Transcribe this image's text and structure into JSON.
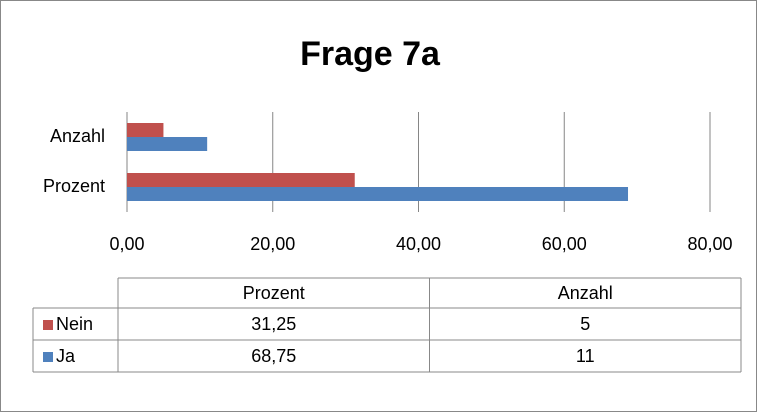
{
  "chart_data": {
    "type": "bar",
    "orientation": "horizontal",
    "title": "Frage 7a",
    "categories": [
      "Prozent",
      "Anzahl"
    ],
    "series": [
      {
        "name": "Nein",
        "color": "#c0504d",
        "values": [
          31.25,
          5
        ],
        "value_labels": [
          "31,25",
          "5"
        ]
      },
      {
        "name": "Ja",
        "color": "#4f81bd",
        "values": [
          68.75,
          11
        ],
        "value_labels": [
          "68,75",
          "11"
        ]
      }
    ],
    "xlim": [
      0,
      80
    ],
    "xticks": [
      {
        "value": 0,
        "label": "0,00"
      },
      {
        "value": 20,
        "label": "20,00"
      },
      {
        "value": 40,
        "label": "40,00"
      },
      {
        "value": 60,
        "label": "60,00"
      },
      {
        "value": 80,
        "label": "80,00"
      }
    ],
    "grid": true,
    "data_table": true
  }
}
